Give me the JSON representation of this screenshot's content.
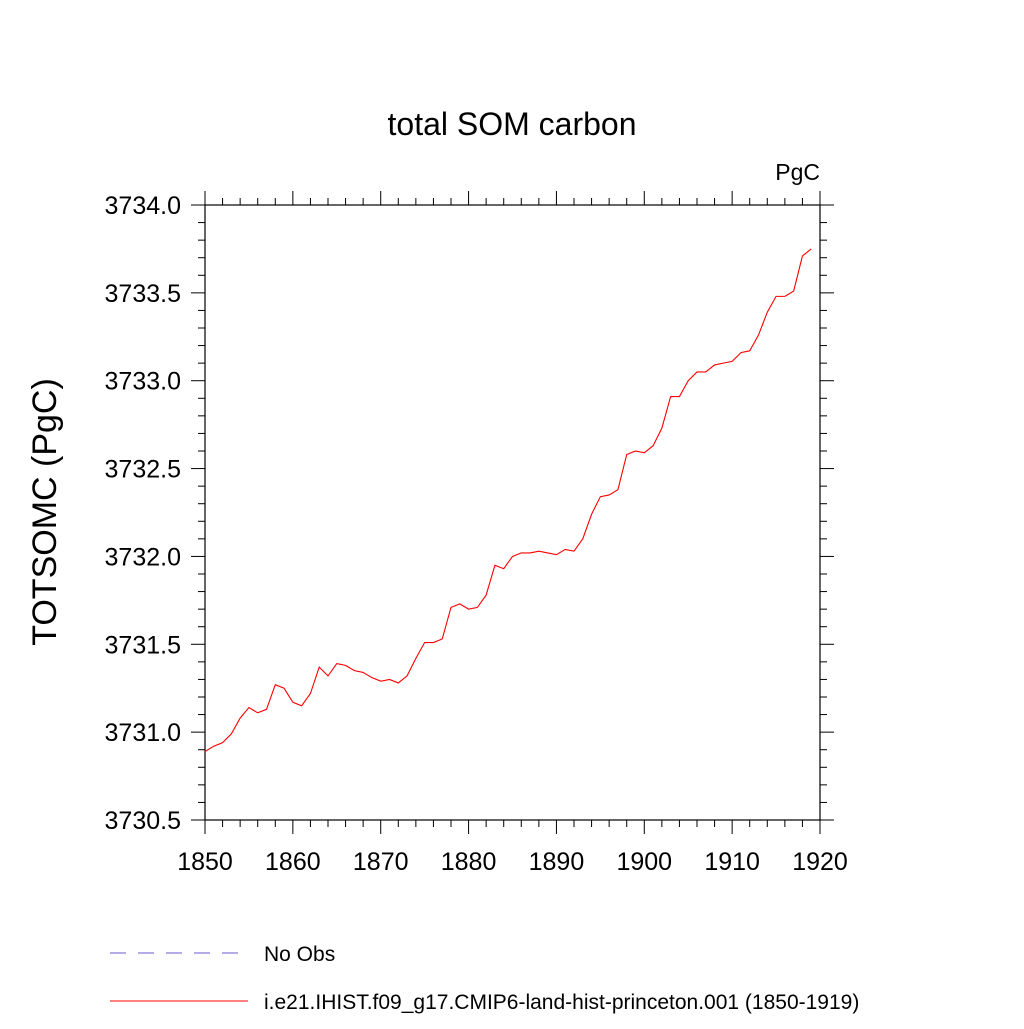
{
  "chart_data": {
    "type": "line",
    "title": "total SOM carbon",
    "units_label": "PgC",
    "xlabel": "",
    "ylabel": "TOTSOMC  (PgC)",
    "xlim": [
      1850,
      1920
    ],
    "ylim": [
      3730.5,
      3734.0
    ],
    "x_ticks": [
      1850,
      1860,
      1870,
      1880,
      1890,
      1900,
      1910,
      1920
    ],
    "y_ticks": [
      "3730.5",
      "3731.0",
      "3731.5",
      "3732.0",
      "3732.5",
      "3733.0",
      "3733.5",
      "3734.0"
    ],
    "grid": false,
    "legend_position": "bottom",
    "series": [
      {
        "name": "No Obs",
        "color": "#6a5acd",
        "style": "dashed",
        "x": [],
        "y": []
      },
      {
        "name": "i.e21.IHIST.f09_g17.CMIP6-land-hist-princeton.001 (1850-1919)",
        "color": "#ff0000",
        "style": "solid",
        "x": [
          1850,
          1851,
          1852,
          1853,
          1854,
          1855,
          1856,
          1857,
          1858,
          1859,
          1860,
          1861,
          1862,
          1863,
          1864,
          1865,
          1866,
          1867,
          1868,
          1869,
          1870,
          1871,
          1872,
          1873,
          1874,
          1875,
          1876,
          1877,
          1878,
          1879,
          1880,
          1881,
          1882,
          1883,
          1884,
          1885,
          1886,
          1887,
          1888,
          1889,
          1890,
          1891,
          1892,
          1893,
          1894,
          1895,
          1896,
          1897,
          1898,
          1899,
          1900,
          1901,
          1902,
          1903,
          1904,
          1905,
          1906,
          1907,
          1908,
          1909,
          1910,
          1911,
          1912,
          1913,
          1914,
          1915,
          1916,
          1917,
          1918,
          1919
        ],
        "y": [
          3730.89,
          3730.92,
          3730.94,
          3730.99,
          3731.08,
          3731.14,
          3731.11,
          3731.13,
          3731.27,
          3731.25,
          3731.17,
          3731.15,
          3731.22,
          3731.37,
          3731.32,
          3731.39,
          3731.38,
          3731.35,
          3731.34,
          3731.31,
          3731.29,
          3731.3,
          3731.28,
          3731.32,
          3731.42,
          3731.51,
          3731.51,
          3731.53,
          3731.71,
          3731.73,
          3731.7,
          3731.71,
          3731.78,
          3731.95,
          3731.93,
          3732.0,
          3732.02,
          3732.02,
          3732.03,
          3732.02,
          3732.01,
          3732.04,
          3732.03,
          3732.1,
          3732.24,
          3732.34,
          3732.35,
          3732.38,
          3732.58,
          3732.6,
          3732.59,
          3732.63,
          3732.73,
          3732.91,
          3732.91,
          3733.0,
          3733.05,
          3733.05,
          3733.09,
          3733.1,
          3733.11,
          3733.16,
          3733.17,
          3733.26,
          3733.39,
          3733.48,
          3733.48,
          3733.51,
          3733.71,
          3733.75
        ]
      }
    ]
  }
}
